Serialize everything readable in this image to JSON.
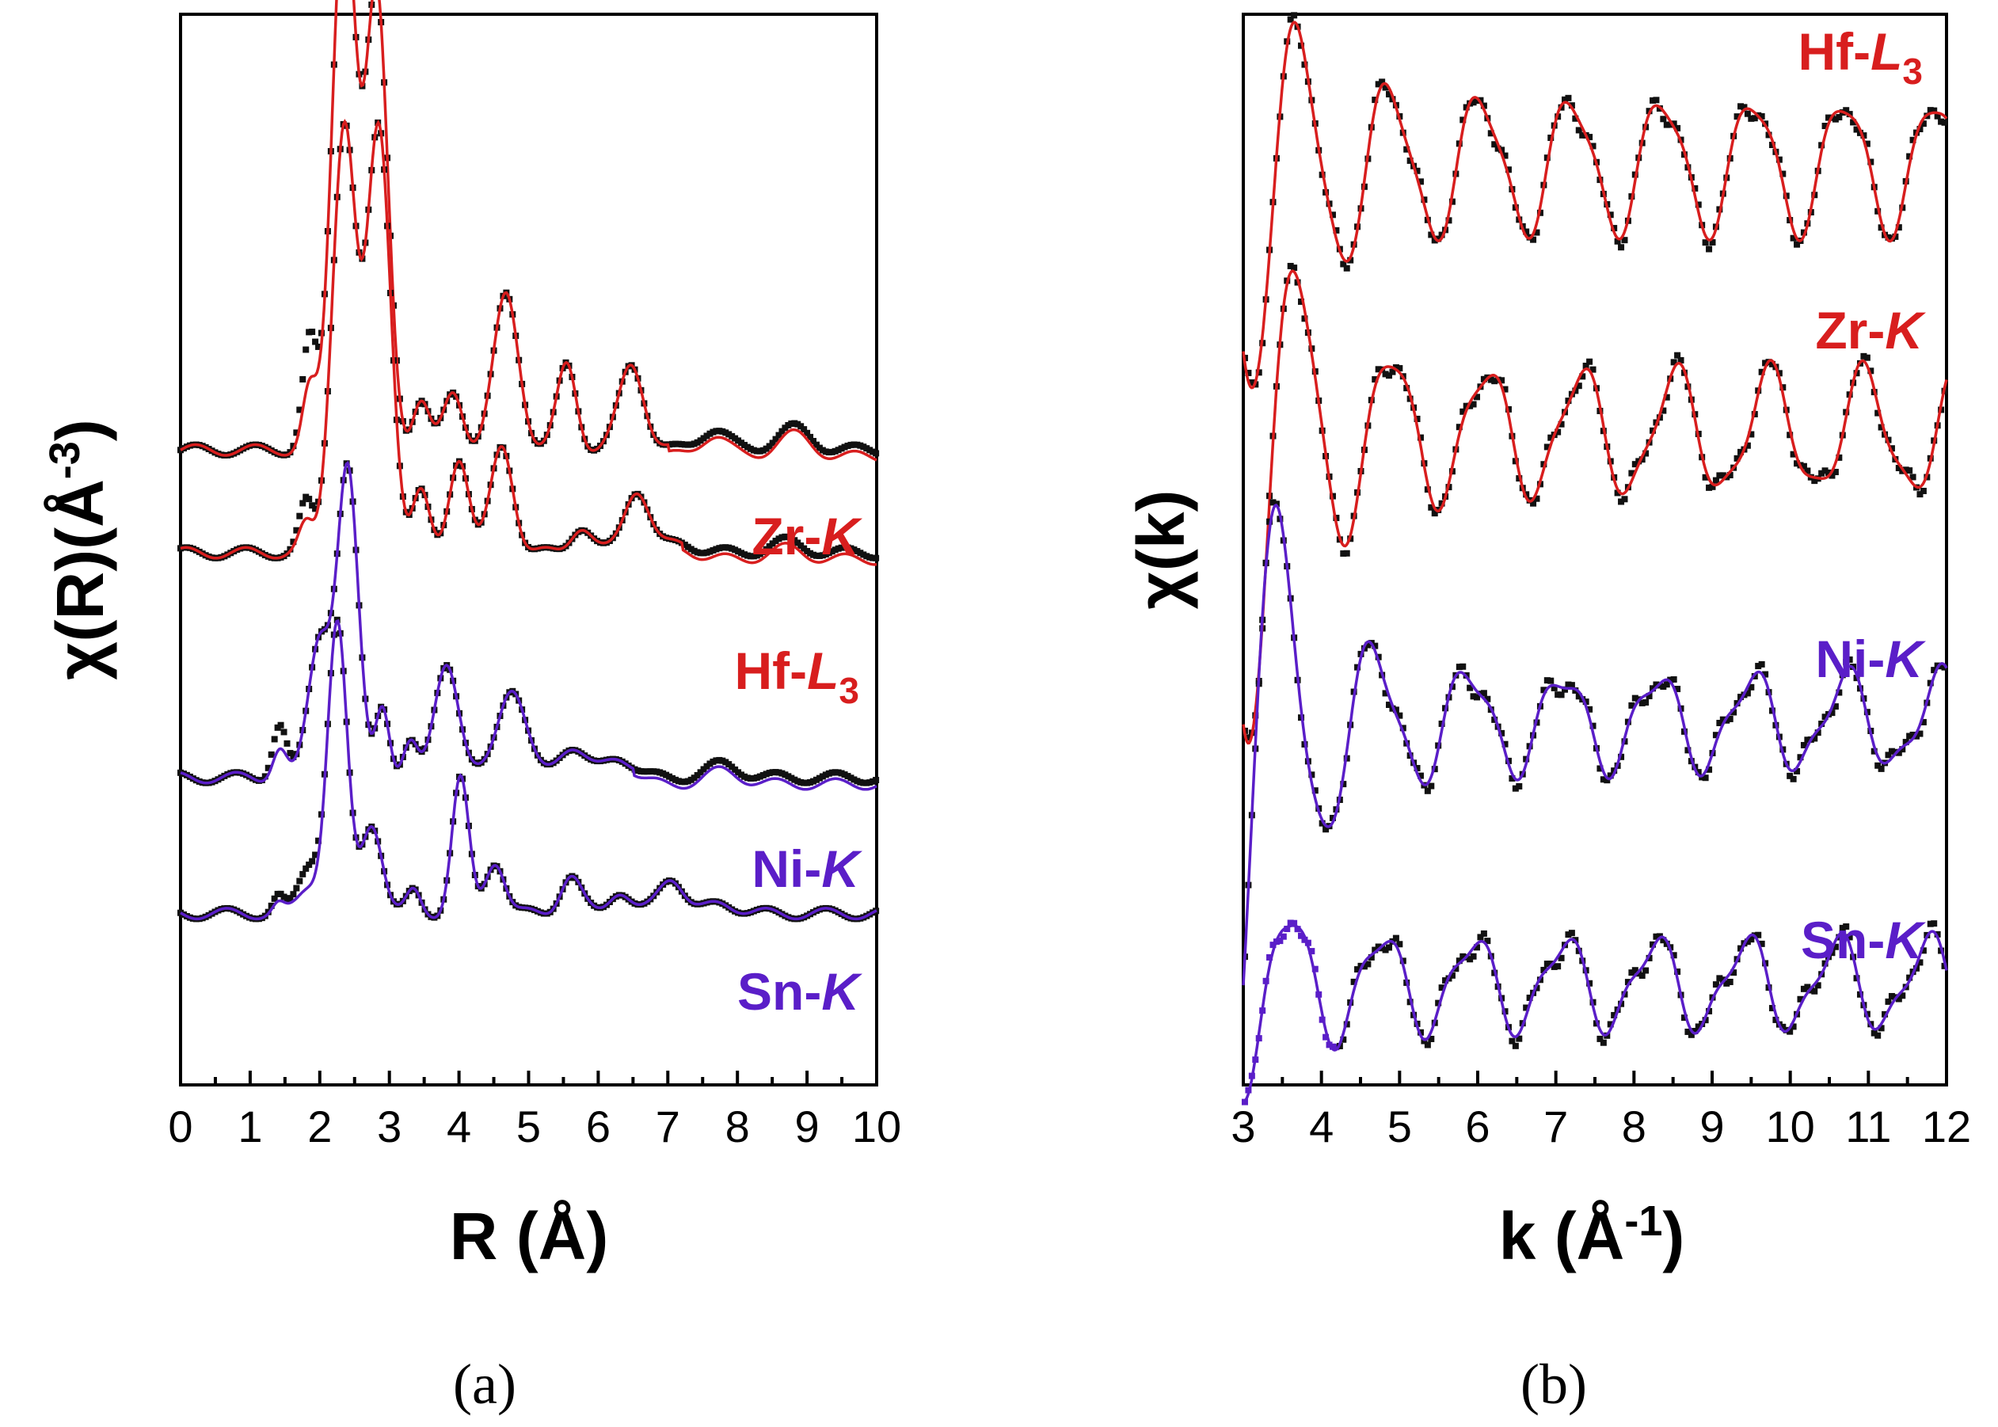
{
  "colors": {
    "red": "#d81e1e",
    "purple": "#5a1ec8",
    "data": "#111111"
  },
  "chart_data": [
    {
      "type": "line",
      "panel_label": "(a)",
      "xlabel": "R (Å)",
      "ylabel_prefix": "χ(R)(Å",
      "ylabel_sup": "-3",
      "ylabel_suffix": ")",
      "xlim": [
        0,
        10
      ],
      "xticks": [
        0,
        1,
        2,
        3,
        4,
        5,
        6,
        7,
        8,
        9,
        10
      ],
      "ylim": [
        0,
        10
      ],
      "y_ticks_shown": false,
      "series": [
        {
          "name": "Zr-K",
          "label_main": "Zr-",
          "label_italic": "K",
          "label_sub": "",
          "color": "red",
          "baseline": 5.93,
          "peaks": [
            [
              1.85,
              1.0,
              0.1
            ],
            [
              2.35,
              5.2,
              0.17
            ],
            [
              2.82,
              4.2,
              0.16
            ],
            [
              3.45,
              0.45,
              0.12
            ],
            [
              3.92,
              0.55,
              0.14
            ],
            [
              4.68,
              1.45,
              0.18
            ],
            [
              5.55,
              0.8,
              0.14
            ],
            [
              6.48,
              0.8,
              0.18
            ],
            [
              7.65,
              0.2,
              0.2
            ],
            [
              8.8,
              0.2,
              0.25
            ]
          ],
          "fit_end": 7.0,
          "data_end": 10.0
        },
        {
          "name": "Hf-L3",
          "label_main": "Hf-",
          "label_italic": "L",
          "label_sub": "3",
          "color": "red",
          "baseline": 4.97,
          "peaks": [
            [
              1.8,
              0.45,
              0.1
            ],
            [
              2.35,
              4.0,
              0.17
            ],
            [
              2.85,
              3.95,
              0.17
            ],
            [
              3.45,
              0.55,
              0.12
            ],
            [
              4.0,
              0.9,
              0.14
            ],
            [
              4.62,
              1.0,
              0.16
            ],
            [
              5.75,
              0.25,
              0.15
            ],
            [
              6.55,
              0.6,
              0.18
            ],
            [
              7.2,
              0.1,
              0.2
            ],
            [
              8.7,
              0.1,
              0.25
            ]
          ],
          "fit_end": 7.2,
          "data_end": 10.0
        },
        {
          "name": "Ni-K",
          "label_main": "Ni-",
          "label_italic": "K",
          "label_sub": "",
          "color": "purple",
          "baseline": 2.87,
          "peaks": [
            [
              1.42,
              0.5,
              0.1
            ],
            [
              2.0,
              1.3,
              0.16
            ],
            [
              2.4,
              2.85,
              0.15
            ],
            [
              2.9,
              0.7,
              0.1
            ],
            [
              3.3,
              0.3,
              0.1
            ],
            [
              3.82,
              1.1,
              0.17
            ],
            [
              4.75,
              0.85,
              0.2
            ],
            [
              5.6,
              0.3,
              0.2
            ],
            [
              6.3,
              0.2,
              0.2
            ],
            [
              7.8,
              0.12,
              0.25
            ]
          ],
          "fit_end": 6.5,
          "data_end": 10.0
        },
        {
          "name": "Sn-K",
          "label_main": "Sn-",
          "label_italic": "K",
          "label_sub": "",
          "color": "purple",
          "baseline": 1.6,
          "peaks": [
            [
              1.4,
              0.15,
              0.08
            ],
            [
              1.85,
              0.45,
              0.15
            ],
            [
              2.25,
              2.7,
              0.14
            ],
            [
              2.75,
              0.85,
              0.15
            ],
            [
              3.35,
              0.2,
              0.1
            ],
            [
              4.02,
              1.25,
              0.12
            ],
            [
              4.52,
              0.5,
              0.14
            ],
            [
              5.6,
              0.35,
              0.15
            ],
            [
              6.3,
              0.22,
              0.15
            ],
            [
              7.05,
              0.35,
              0.18
            ],
            [
              7.8,
              0.1,
              0.2
            ]
          ],
          "fit_end": 10.0,
          "data_end": 10.0
        }
      ]
    },
    {
      "type": "line",
      "panel_label": "(b)",
      "xlabel_prefix": "k (Å",
      "xlabel_sup": "-1",
      "xlabel_suffix": ")",
      "ylabel": "χ(k)",
      "xlim": [
        3,
        12
      ],
      "xticks": [
        3,
        4,
        5,
        6,
        7,
        8,
        9,
        10,
        11,
        12
      ],
      "ylim": [
        0,
        10
      ],
      "y_ticks_shown": false,
      "series": [
        {
          "name": "Hf-L3",
          "label_main": "Hf-",
          "label_italic": "L",
          "label_sub": "3",
          "color": "red",
          "baseline": 8.6,
          "amp": 0.6,
          "freq": 5.4,
          "phase": 0.4,
          "start_amp": 1.8
        },
        {
          "name": "Zr-K",
          "label_main": "Zr-",
          "label_italic": "K",
          "label_sub": "",
          "color": "red",
          "baseline": 6.1,
          "amp": 0.55,
          "freq": 5.2,
          "phase": 1.2,
          "start_amp": 2.6
        },
        {
          "name": "Ni-K",
          "label_main": "Ni-",
          "label_italic": "K",
          "label_sub": "",
          "color": "purple",
          "baseline": 3.4,
          "amp": 0.42,
          "freq": 5.2,
          "phase": 2.4,
          "start_amp": 2.8
        },
        {
          "name": "Sn-K",
          "label_main": "Sn-",
          "label_italic": "K",
          "label_sub": "",
          "color": "purple",
          "baseline": 0.95,
          "amp": 0.4,
          "freq": 5.4,
          "phase": 0.9,
          "start_amp": 0.6
        }
      ]
    }
  ]
}
